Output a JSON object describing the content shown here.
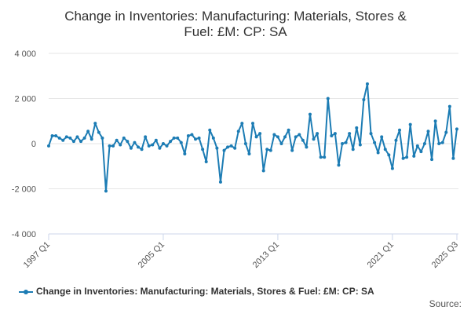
{
  "chart_data": {
    "type": "line",
    "title_line1": "Change in Inventories: Manufacturing: Materials, Stores &",
    "title_line2": "Fuel: £M: CP: SA",
    "xlabel": "",
    "ylabel": "",
    "ylim": [
      -4000,
      4000
    ],
    "yticks": [
      -4000,
      -2000,
      0,
      2000,
      4000
    ],
    "ytick_labels": [
      "-4 000",
      "-2 000",
      "0",
      "2 000",
      "4 000"
    ],
    "xtick_labels": [
      "1997 Q1",
      "2005 Q1",
      "2013 Q1",
      "2021 Q1",
      "2025 Q3"
    ],
    "x_start": "1997 Q1",
    "x_end": "2025 Q3",
    "grid": "horizontal",
    "legend_position": "bottom",
    "source_label": "Source:",
    "colors": {
      "series": "#1c7cb4",
      "grid": "#e6e6e6",
      "axis": "#ccd6eb"
    },
    "series": [
      {
        "name": "Change in Inventories: Manufacturing: Materials, Stores & Fuel: £M: CP: SA",
        "values": [
          -100,
          350,
          350,
          250,
          150,
          300,
          250,
          100,
          300,
          100,
          250,
          550,
          200,
          900,
          500,
          250,
          -2100,
          -100,
          -100,
          150,
          -50,
          250,
          100,
          -200,
          50,
          -150,
          -250,
          300,
          -100,
          -50,
          150,
          -200,
          0,
          -100,
          100,
          250,
          250,
          50,
          -450,
          350,
          400,
          200,
          250,
          -250,
          -800,
          600,
          250,
          -200,
          -1700,
          -300,
          -150,
          -100,
          -200,
          550,
          900,
          0,
          -450,
          900,
          300,
          450,
          -1200,
          -250,
          -300,
          400,
          300,
          0,
          300,
          600,
          -300,
          300,
          400,
          150,
          -150,
          1300,
          200,
          450,
          -600,
          -600,
          2000,
          350,
          450,
          -950,
          0,
          50,
          450,
          -250,
          700,
          -50,
          1950,
          2650,
          450,
          50,
          -400,
          300,
          -250,
          -500,
          -1100,
          150,
          600,
          -650,
          -600,
          850,
          -550,
          -100,
          -350,
          0,
          550,
          -700,
          1000,
          0,
          50,
          500,
          1650,
          -650,
          650
        ]
      }
    ]
  }
}
